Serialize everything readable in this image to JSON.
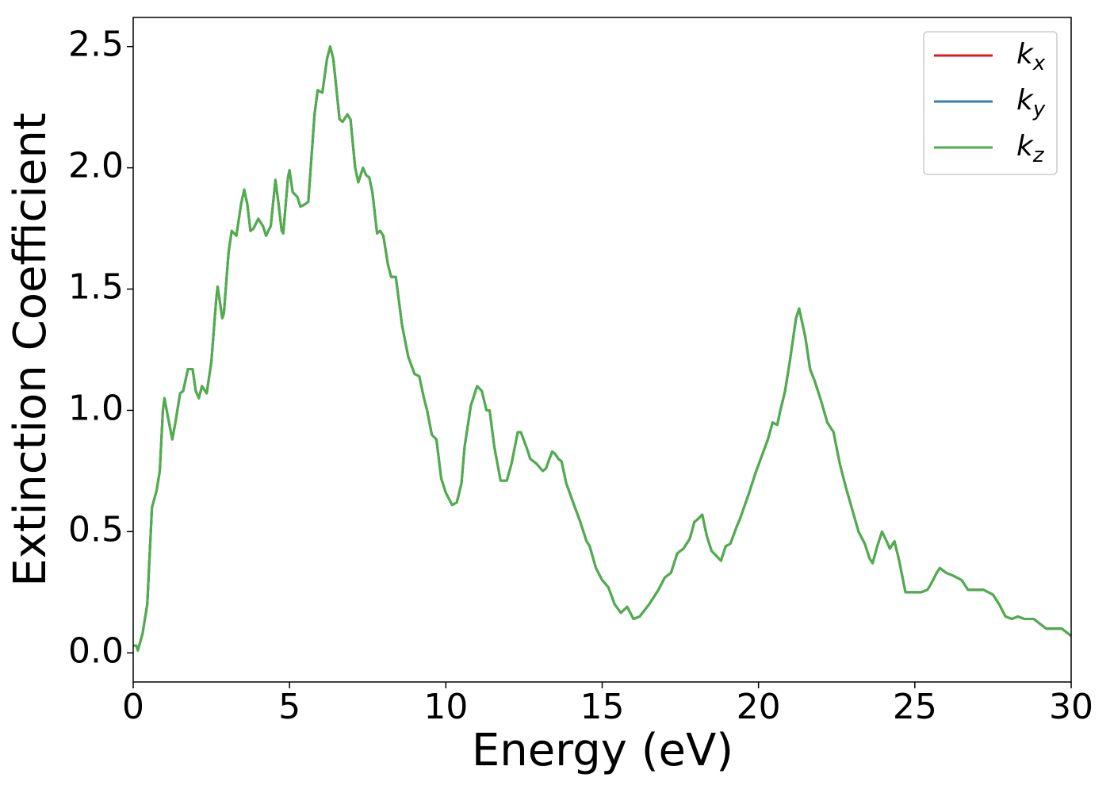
{
  "chart_data": {
    "type": "line",
    "xlabel": "Energy (eV)",
    "ylabel": "Extinction Coefficient",
    "xlim": [
      0,
      30
    ],
    "ylim": [
      -0.12,
      2.62
    ],
    "xticks": [
      0,
      5,
      10,
      15,
      20,
      25,
      30
    ],
    "yticks": [
      {
        "value": 0,
        "label": "0.0"
      },
      0.5,
      {
        "value": 1,
        "label": "1.0"
      },
      1.5,
      {
        "value": 2,
        "label": "2.0"
      },
      2.5
    ],
    "legend": "upper right",
    "x": [
      0,
      0.1,
      0.15,
      0.3,
      0.45,
      0.6,
      0.75,
      0.85,
      0.95,
      1.0,
      1.1,
      1.25,
      1.35,
      1.5,
      1.6,
      1.75,
      1.9,
      2.0,
      2.1,
      2.2,
      2.35,
      2.5,
      2.65,
      2.7,
      2.85,
      2.9,
      3.05,
      3.15,
      3.3,
      3.45,
      3.55,
      3.65,
      3.75,
      3.85,
      4.0,
      4.15,
      4.25,
      4.4,
      4.55,
      4.65,
      4.75,
      4.8,
      4.95,
      5.0,
      5.1,
      5.25,
      5.35,
      5.5,
      5.6,
      5.8,
      5.9,
      6.05,
      6.2,
      6.3,
      6.4,
      6.6,
      6.7,
      6.85,
      6.95,
      7.1,
      7.2,
      7.35,
      7.45,
      7.55,
      7.65,
      7.8,
      7.9,
      8.0,
      8.15,
      8.25,
      8.4,
      8.6,
      8.8,
      9.0,
      9.15,
      9.3,
      9.4,
      9.55,
      9.7,
      9.85,
      10.0,
      10.2,
      10.35,
      10.5,
      10.6,
      10.8,
      11.0,
      11.15,
      11.3,
      11.4,
      11.55,
      11.75,
      11.95,
      12.1,
      12.3,
      12.4,
      12.6,
      12.7,
      12.9,
      13.1,
      13.2,
      13.4,
      13.5,
      13.6,
      13.7,
      13.85,
      14.1,
      14.3,
      14.5,
      14.6,
      14.8,
      15.0,
      15.2,
      15.4,
      15.6,
      15.8,
      16.0,
      16.2,
      16.5,
      16.8,
      17.0,
      17.2,
      17.4,
      17.6,
      17.8,
      17.95,
      18.05,
      18.2,
      18.35,
      18.5,
      18.8,
      18.95,
      19.1,
      19.3,
      19.4,
      19.7,
      19.9,
      20.1,
      20.3,
      20.45,
      20.6,
      20.7,
      20.85,
      21.0,
      21.2,
      21.3,
      21.5,
      21.65,
      21.8,
      22.0,
      22.2,
      22.4,
      22.6,
      22.8,
      23.0,
      23.2,
      23.4,
      23.55,
      23.65,
      23.8,
      23.95,
      24.1,
      24.2,
      24.35,
      24.5,
      24.7,
      24.9,
      25.2,
      25.4,
      25.5,
      25.7,
      25.8,
      26.0,
      26.2,
      26.5,
      26.7,
      26.9,
      27.2,
      27.5,
      27.7,
      27.9,
      28.1,
      28.3,
      28.5,
      28.8,
      29.0,
      29.2,
      29.5,
      29.7,
      30.0
    ],
    "series": [
      {
        "name": "kx",
        "color": "#e41a1c",
        "values": [
          0.03,
          0.03,
          0.01,
          0.08,
          0.2,
          0.6,
          0.67,
          0.75,
          1.0,
          1.05,
          0.98,
          0.88,
          0.95,
          1.07,
          1.08,
          1.17,
          1.17,
          1.08,
          1.05,
          1.1,
          1.07,
          1.2,
          1.45,
          1.51,
          1.38,
          1.4,
          1.65,
          1.74,
          1.72,
          1.85,
          1.91,
          1.85,
          1.74,
          1.75,
          1.79,
          1.76,
          1.72,
          1.76,
          1.95,
          1.85,
          1.74,
          1.73,
          1.96,
          1.99,
          1.9,
          1.88,
          1.84,
          1.85,
          1.86,
          2.22,
          2.32,
          2.31,
          2.45,
          2.5,
          2.45,
          2.2,
          2.19,
          2.22,
          2.2,
          2.0,
          1.94,
          2.0,
          1.97,
          1.96,
          1.9,
          1.73,
          1.74,
          1.72,
          1.6,
          1.55,
          1.55,
          1.35,
          1.22,
          1.15,
          1.14,
          1.05,
          1.0,
          0.9,
          0.88,
          0.72,
          0.66,
          0.61,
          0.62,
          0.7,
          0.85,
          1.02,
          1.1,
          1.08,
          1.0,
          1.0,
          0.85,
          0.71,
          0.71,
          0.78,
          0.91,
          0.91,
          0.84,
          0.8,
          0.78,
          0.75,
          0.76,
          0.83,
          0.82,
          0.8,
          0.79,
          0.7,
          0.61,
          0.54,
          0.46,
          0.44,
          0.35,
          0.3,
          0.27,
          0.2,
          0.165,
          0.19,
          0.14,
          0.15,
          0.2,
          0.26,
          0.31,
          0.33,
          0.41,
          0.43,
          0.47,
          0.54,
          0.55,
          0.57,
          0.48,
          0.42,
          0.38,
          0.44,
          0.45,
          0.52,
          0.55,
          0.66,
          0.74,
          0.81,
          0.88,
          0.95,
          0.94,
          1.0,
          1.08,
          1.2,
          1.38,
          1.42,
          1.3,
          1.17,
          1.12,
          1.04,
          0.95,
          0.91,
          0.78,
          0.68,
          0.59,
          0.5,
          0.45,
          0.39,
          0.37,
          0.44,
          0.5,
          0.46,
          0.43,
          0.46,
          0.38,
          0.25,
          0.25,
          0.25,
          0.26,
          0.28,
          0.33,
          0.35,
          0.33,
          0.32,
          0.3,
          0.26,
          0.26,
          0.26,
          0.24,
          0.2,
          0.15,
          0.14,
          0.15,
          0.14,
          0.14,
          0.12,
          0.1,
          0.1,
          0.1,
          0.07
        ]
      },
      {
        "name": "ky",
        "color": "#377eb8",
        "values": [
          0.03,
          0.03,
          0.01,
          0.08,
          0.2,
          0.6,
          0.67,
          0.75,
          1.0,
          1.05,
          0.98,
          0.88,
          0.95,
          1.07,
          1.08,
          1.17,
          1.17,
          1.08,
          1.05,
          1.1,
          1.07,
          1.2,
          1.45,
          1.51,
          1.38,
          1.4,
          1.65,
          1.74,
          1.72,
          1.85,
          1.91,
          1.85,
          1.74,
          1.75,
          1.79,
          1.76,
          1.72,
          1.76,
          1.95,
          1.85,
          1.74,
          1.73,
          1.96,
          1.99,
          1.9,
          1.88,
          1.84,
          1.85,
          1.86,
          2.22,
          2.32,
          2.31,
          2.45,
          2.5,
          2.45,
          2.2,
          2.19,
          2.22,
          2.2,
          2.0,
          1.94,
          2.0,
          1.97,
          1.96,
          1.9,
          1.73,
          1.74,
          1.72,
          1.6,
          1.55,
          1.55,
          1.35,
          1.22,
          1.15,
          1.14,
          1.05,
          1.0,
          0.9,
          0.88,
          0.72,
          0.66,
          0.61,
          0.62,
          0.7,
          0.85,
          1.02,
          1.1,
          1.08,
          1.0,
          1.0,
          0.85,
          0.71,
          0.71,
          0.78,
          0.91,
          0.91,
          0.84,
          0.8,
          0.78,
          0.75,
          0.76,
          0.83,
          0.82,
          0.8,
          0.79,
          0.7,
          0.61,
          0.54,
          0.46,
          0.44,
          0.35,
          0.3,
          0.27,
          0.2,
          0.165,
          0.19,
          0.14,
          0.15,
          0.2,
          0.26,
          0.31,
          0.33,
          0.41,
          0.43,
          0.47,
          0.54,
          0.55,
          0.57,
          0.48,
          0.42,
          0.38,
          0.44,
          0.45,
          0.52,
          0.55,
          0.66,
          0.74,
          0.81,
          0.88,
          0.95,
          0.94,
          1.0,
          1.08,
          1.2,
          1.38,
          1.42,
          1.3,
          1.17,
          1.12,
          1.04,
          0.95,
          0.91,
          0.78,
          0.68,
          0.59,
          0.5,
          0.45,
          0.39,
          0.37,
          0.44,
          0.5,
          0.46,
          0.43,
          0.46,
          0.38,
          0.25,
          0.25,
          0.25,
          0.26,
          0.28,
          0.33,
          0.35,
          0.33,
          0.32,
          0.3,
          0.26,
          0.26,
          0.26,
          0.24,
          0.2,
          0.15,
          0.14,
          0.15,
          0.14,
          0.14,
          0.12,
          0.1,
          0.1,
          0.1,
          0.07
        ]
      },
      {
        "name": "kz",
        "color": "#4daf4a",
        "values": [
          0.03,
          0.03,
          0.01,
          0.08,
          0.2,
          0.6,
          0.67,
          0.75,
          1.0,
          1.05,
          0.98,
          0.88,
          0.95,
          1.07,
          1.08,
          1.17,
          1.17,
          1.08,
          1.05,
          1.1,
          1.07,
          1.2,
          1.45,
          1.51,
          1.38,
          1.4,
          1.65,
          1.74,
          1.72,
          1.85,
          1.91,
          1.85,
          1.74,
          1.75,
          1.79,
          1.76,
          1.72,
          1.76,
          1.95,
          1.85,
          1.74,
          1.73,
          1.96,
          1.99,
          1.9,
          1.88,
          1.84,
          1.85,
          1.86,
          2.22,
          2.32,
          2.31,
          2.45,
          2.5,
          2.45,
          2.2,
          2.19,
          2.22,
          2.2,
          2.0,
          1.94,
          2.0,
          1.97,
          1.96,
          1.9,
          1.73,
          1.74,
          1.72,
          1.6,
          1.55,
          1.55,
          1.35,
          1.22,
          1.15,
          1.14,
          1.05,
          1.0,
          0.9,
          0.88,
          0.72,
          0.66,
          0.61,
          0.62,
          0.7,
          0.85,
          1.02,
          1.1,
          1.08,
          1.0,
          1.0,
          0.85,
          0.71,
          0.71,
          0.78,
          0.91,
          0.91,
          0.84,
          0.8,
          0.78,
          0.75,
          0.76,
          0.83,
          0.82,
          0.8,
          0.79,
          0.7,
          0.61,
          0.54,
          0.46,
          0.44,
          0.35,
          0.3,
          0.27,
          0.2,
          0.165,
          0.19,
          0.14,
          0.15,
          0.2,
          0.26,
          0.31,
          0.33,
          0.41,
          0.43,
          0.47,
          0.54,
          0.55,
          0.57,
          0.48,
          0.42,
          0.38,
          0.44,
          0.45,
          0.52,
          0.55,
          0.66,
          0.74,
          0.81,
          0.88,
          0.95,
          0.94,
          1.0,
          1.08,
          1.2,
          1.38,
          1.42,
          1.3,
          1.17,
          1.12,
          1.04,
          0.95,
          0.91,
          0.78,
          0.68,
          0.59,
          0.5,
          0.45,
          0.39,
          0.37,
          0.44,
          0.5,
          0.46,
          0.43,
          0.46,
          0.38,
          0.25,
          0.25,
          0.25,
          0.26,
          0.28,
          0.33,
          0.35,
          0.33,
          0.32,
          0.3,
          0.26,
          0.26,
          0.26,
          0.24,
          0.2,
          0.15,
          0.14,
          0.15,
          0.14,
          0.14,
          0.12,
          0.1,
          0.1,
          0.1,
          0.07
        ]
      }
    ]
  }
}
